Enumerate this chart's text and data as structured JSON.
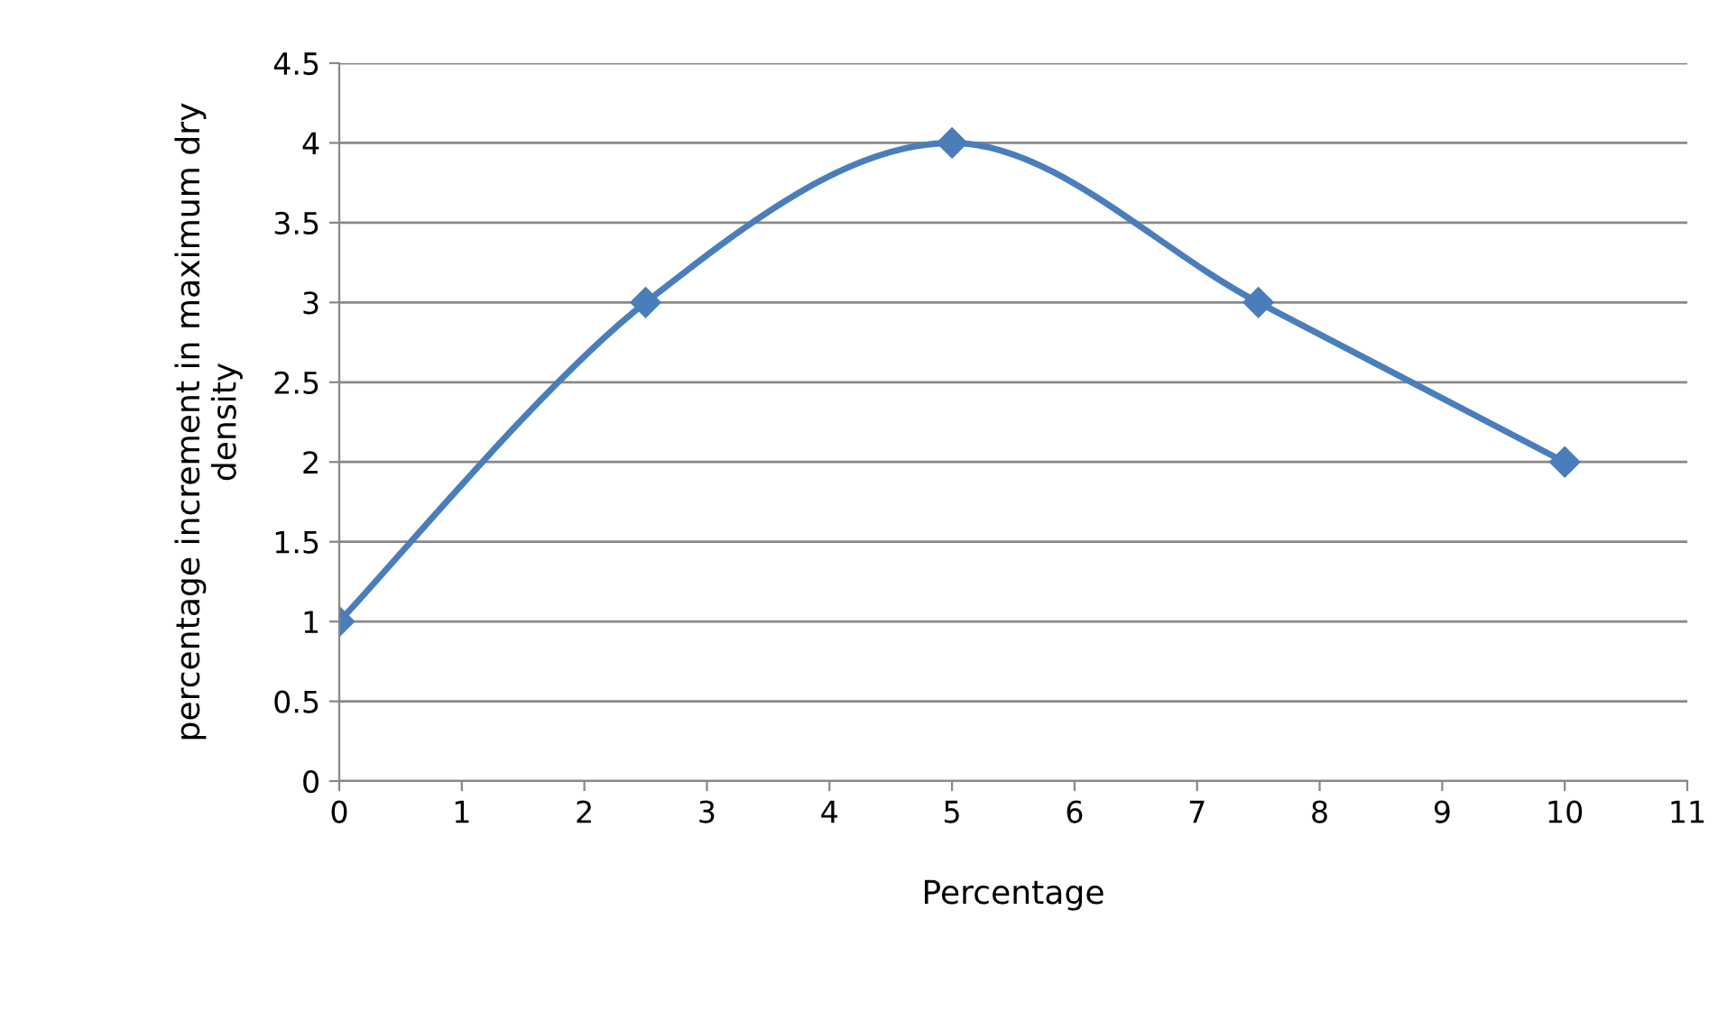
{
  "chart_data": {
    "type": "line",
    "xlabel": "Percentage",
    "ylabel": "percentage increment in maximum dry\ndensity",
    "x": [
      0,
      2.5,
      5,
      7.5,
      10
    ],
    "series": [
      {
        "color": "#4a7ebb",
        "values": [
          1,
          3,
          4,
          3,
          2
        ]
      }
    ],
    "xlim": [
      0,
      11
    ],
    "xticks": [
      0,
      1,
      2,
      3,
      4,
      5,
      6,
      7,
      8,
      9,
      10,
      11
    ],
    "ylim": [
      0,
      4.5
    ],
    "yticks": [
      0,
      0.5,
      1,
      1.5,
      2,
      2.5,
      3,
      3.5,
      4,
      4.5
    ],
    "grid": "y",
    "marker": "diamond",
    "line_style": "solid",
    "legend": false
  }
}
